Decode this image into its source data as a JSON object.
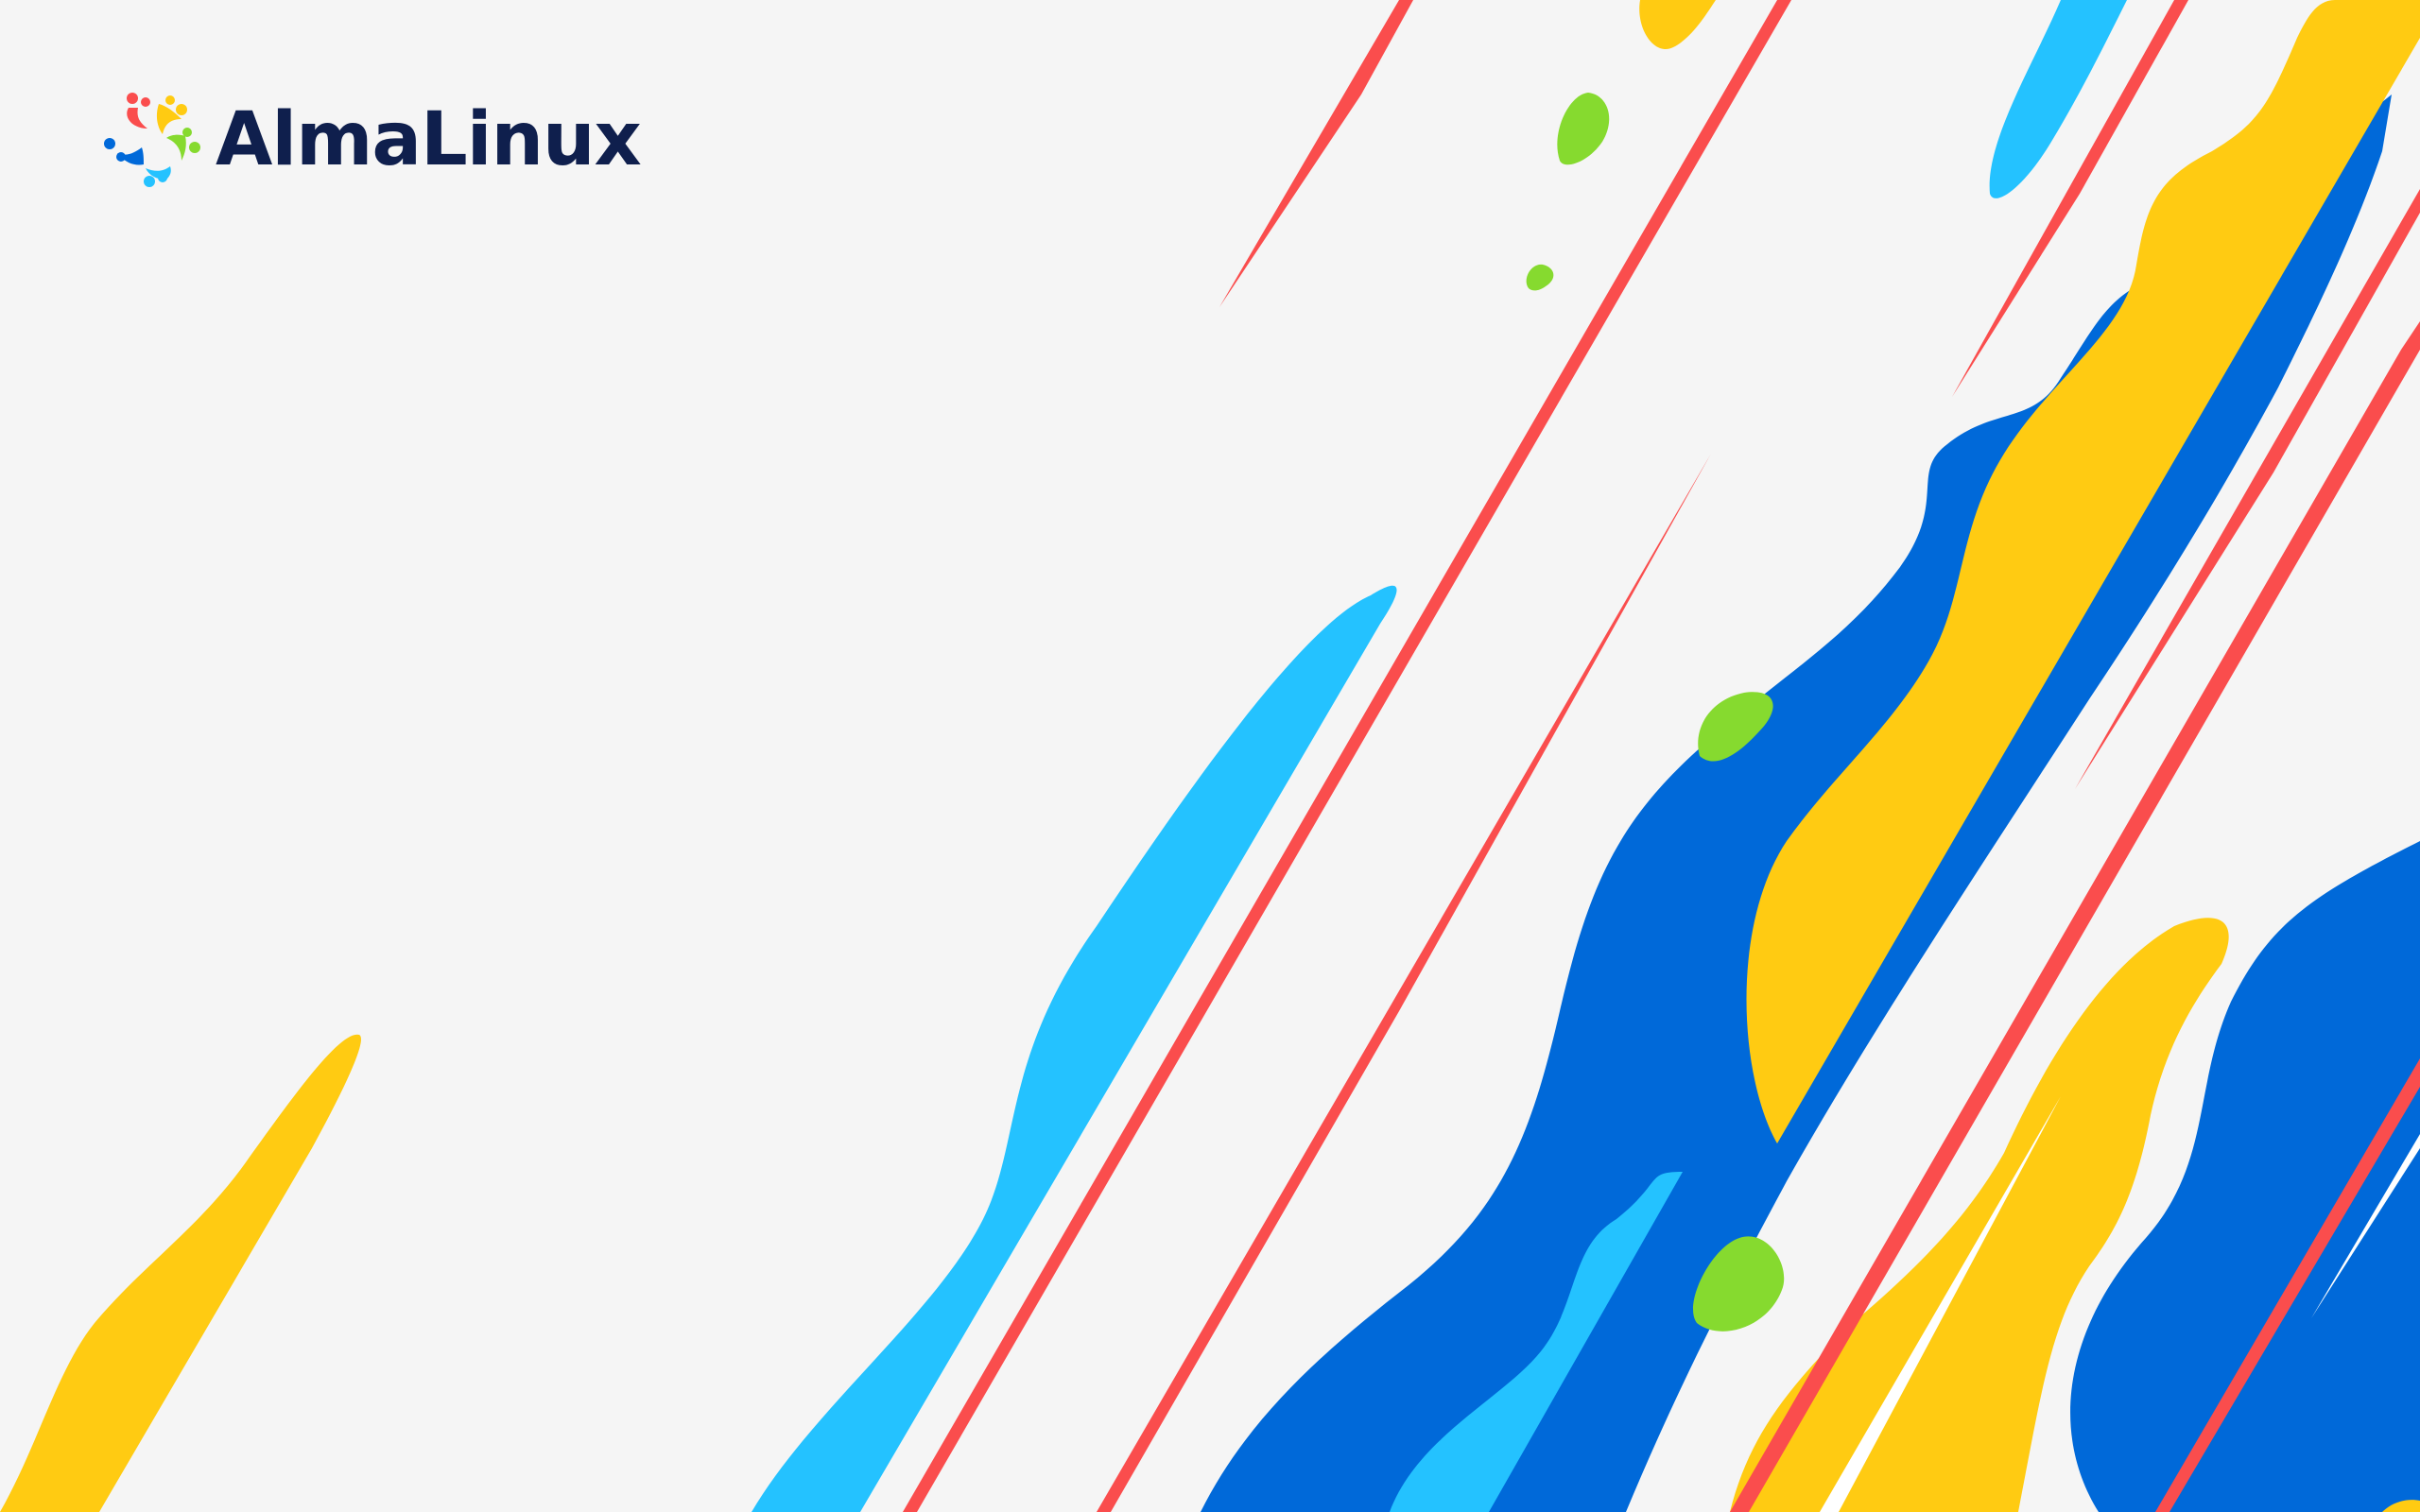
{
  "brand": {
    "name": "AlmaLinux",
    "logo_icon": "almalinux-logo-icon"
  },
  "colors": {
    "background": "#f5f5f5",
    "blue": "#0069d9",
    "light_blue": "#24c2ff",
    "yellow": "#ffcb12",
    "red": "#fa4d4d",
    "green": "#86da2f",
    "text_navy": "#0f1f4d"
  }
}
